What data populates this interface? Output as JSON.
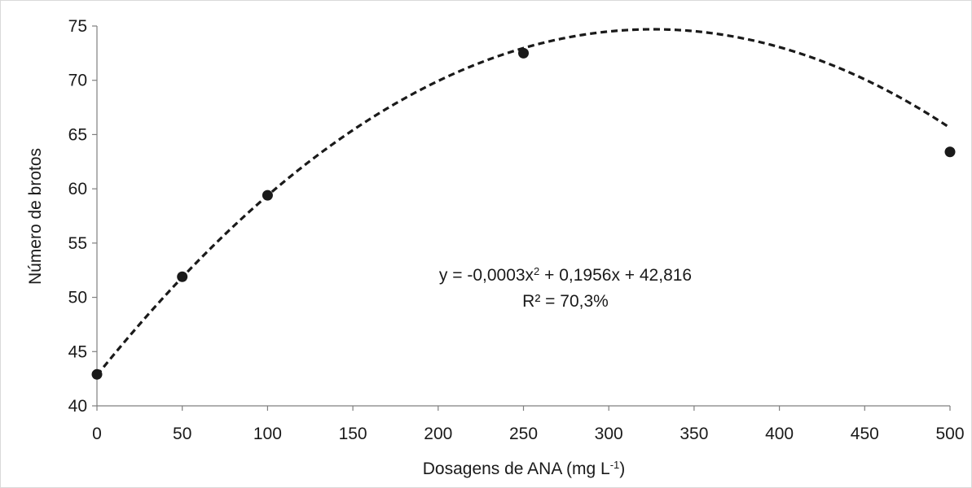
{
  "chart_data": {
    "type": "scatter",
    "title": "",
    "xlabel": "Dosagens de ANA (mg L",
    "xlabel_superscript": "-1",
    "xlabel_suffix": ")",
    "ylabel": "Número de brotos",
    "xlim": [
      0,
      500
    ],
    "ylim": [
      40,
      75
    ],
    "x_ticks": [
      0,
      50,
      100,
      150,
      200,
      250,
      300,
      350,
      400,
      450,
      500
    ],
    "y_ticks": [
      40,
      45,
      50,
      55,
      60,
      65,
      70,
      75
    ],
    "grid": false,
    "legend": "none",
    "series": [
      {
        "x": [
          0,
          50,
          100,
          250,
          500
        ],
        "y": [
          42.9,
          51.9,
          59.4,
          72.5,
          63.4
        ],
        "marker": "circle",
        "color": "#1a1a1a"
      }
    ],
    "trendline": {
      "type": "polynomial",
      "coefficients": [
        -0.0003,
        0.1956,
        42.816
      ],
      "style": "dashed",
      "color": "#1a1a1a"
    },
    "annotations": {
      "equation_prefix": "y = -0,0003x",
      "equation_sup": "2",
      "equation_suffix": " + 0,1956x + 42,816",
      "r_squared": "R² = 70,3%"
    }
  }
}
